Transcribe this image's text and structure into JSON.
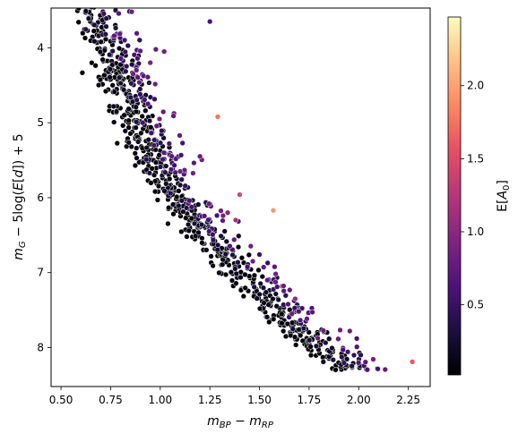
{
  "chart_data": {
    "type": "scatter",
    "title": "",
    "xlabel": "m_{BP} − m_{RP}",
    "ylabel": "m_G − 5log(E[d]) + 5",
    "xlim": [
      0.45,
      2.36
    ],
    "ylim": [
      8.52,
      3.47
    ],
    "y_inverted": true,
    "xticks": [
      0.5,
      0.75,
      1.0,
      1.25,
      1.5,
      1.75,
      2.0,
      2.25
    ],
    "xtick_labels": [
      "0.50",
      "0.75",
      "1.00",
      "1.25",
      "1.50",
      "1.75",
      "2.00",
      "2.25"
    ],
    "yticks": [
      4,
      5,
      6,
      7,
      8
    ],
    "ytick_labels": [
      "4",
      "5",
      "6",
      "7",
      "8"
    ],
    "grid": false,
    "legend": "none",
    "colorbar": {
      "label": "E[A_0]",
      "colormap": "magma",
      "range": [
        0.02,
        2.47
      ],
      "ticks": [
        0.5,
        1.0,
        1.5,
        2.0
      ],
      "tick_labels": [
        "0.5",
        "1.0",
        "1.5",
        "2.0"
      ]
    },
    "main_sequence_points": 900,
    "main_sequence_ridge": [
      [
        0.62,
        3.5
      ],
      [
        0.7,
        3.9
      ],
      [
        0.76,
        4.3
      ],
      [
        0.8,
        4.6
      ],
      [
        0.86,
        5.0
      ],
      [
        0.92,
        5.4
      ],
      [
        1.0,
        5.8
      ],
      [
        1.08,
        6.1
      ],
      [
        1.2,
        6.45
      ],
      [
        1.35,
        6.9
      ],
      [
        1.5,
        7.3
      ],
      [
        1.65,
        7.7
      ],
      [
        1.8,
        8.05
      ],
      [
        1.9,
        8.2
      ]
    ],
    "highlighted_points": [
      {
        "x": 1.29,
        "y": 4.92,
        "a0": 1.75
      },
      {
        "x": 1.57,
        "y": 6.17,
        "a0": 1.95
      },
      {
        "x": 1.4,
        "y": 5.96,
        "a0": 1.45
      },
      {
        "x": 2.27,
        "y": 8.19,
        "a0": 1.6
      },
      {
        "x": 1.38,
        "y": 6.3,
        "a0": 1.15
      },
      {
        "x": 1.68,
        "y": 7.35,
        "a0": 1.05
      },
      {
        "x": 1.34,
        "y": 6.2,
        "a0": 1.0
      },
      {
        "x": 1.99,
        "y": 7.88,
        "a0": 0.6
      },
      {
        "x": 2.01,
        "y": 8.1,
        "a0": 0.4
      },
      {
        "x": 1.1,
        "y": 5.65,
        "a0": 0.85
      },
      {
        "x": 1.2,
        "y": 5.45,
        "a0": 0.8
      },
      {
        "x": 0.95,
        "y": 4.2,
        "a0": 0.9
      },
      {
        "x": 1.02,
        "y": 4.05,
        "a0": 0.85
      },
      {
        "x": 1.25,
        "y": 3.65,
        "a0": 0.6
      }
    ]
  }
}
